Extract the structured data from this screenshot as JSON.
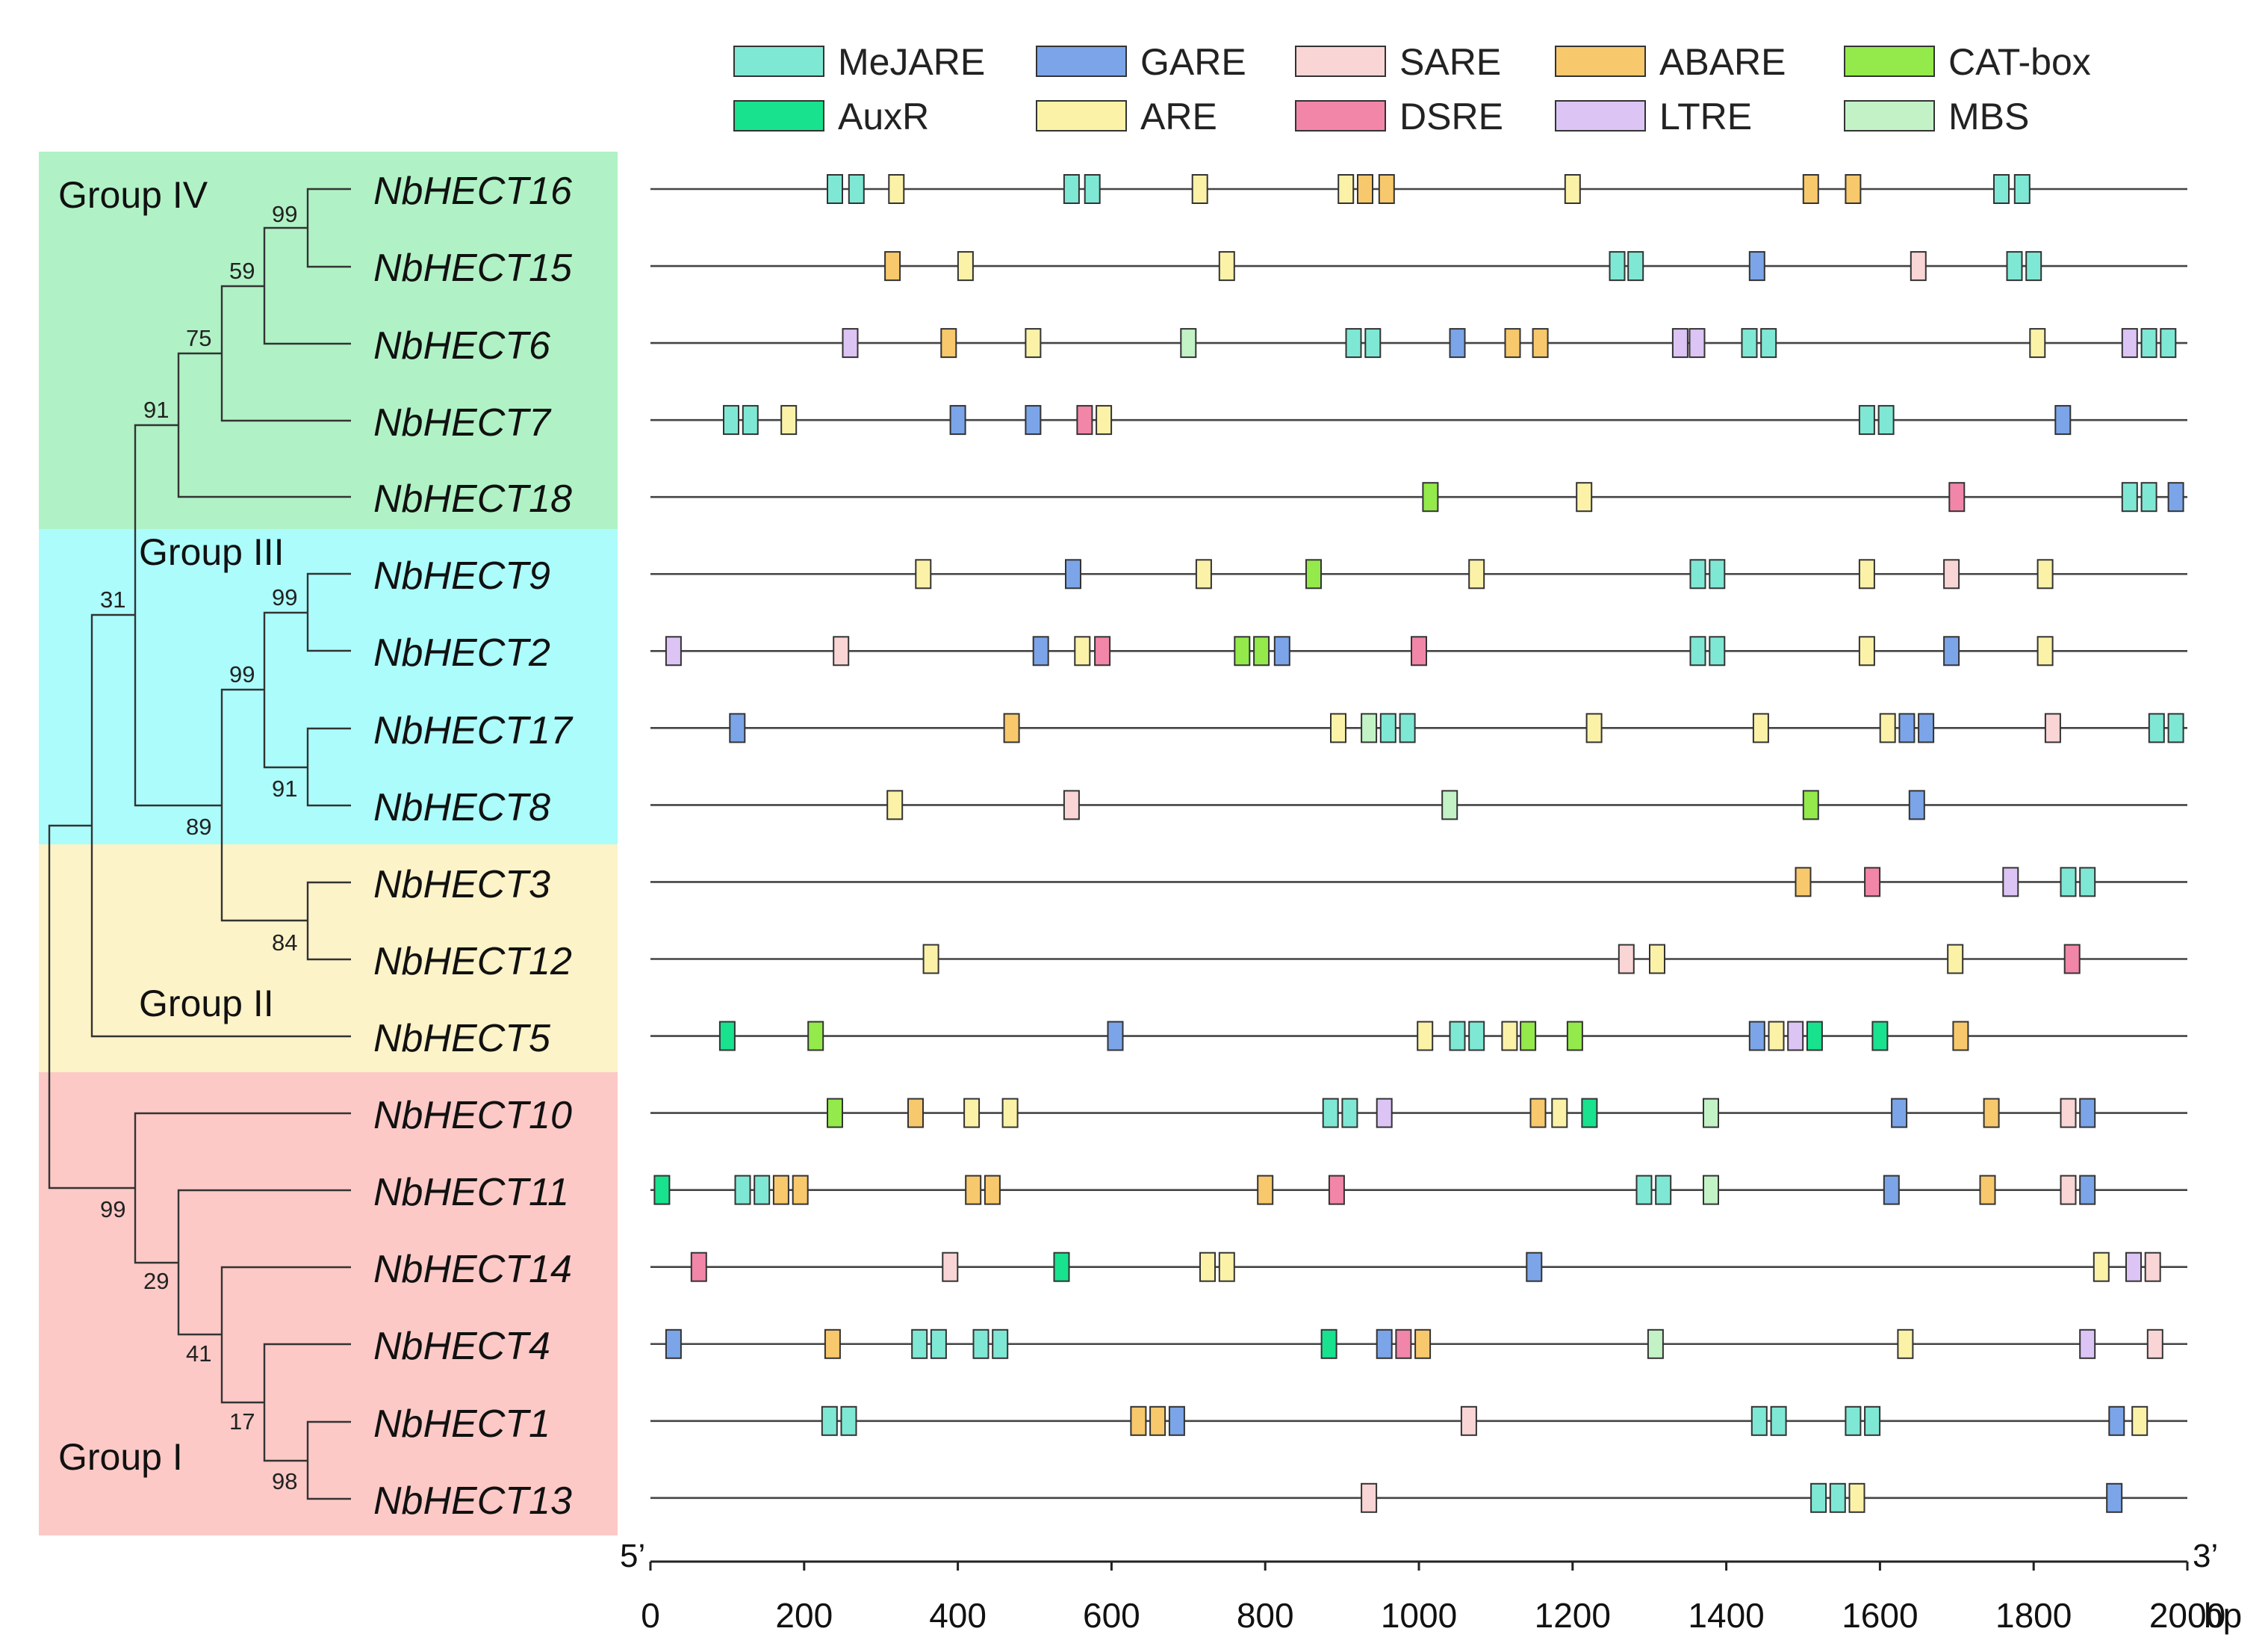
{
  "legend": [
    {
      "key": "MeJARE",
      "label": "MeJARE",
      "color": "#7fe8d4"
    },
    {
      "key": "GARE",
      "label": "GARE",
      "color": "#7ba5e8"
    },
    {
      "key": "SARE",
      "label": "SARE",
      "color": "#fad5d5"
    },
    {
      "key": "ABARE",
      "label": "ABARE",
      "color": "#f8c86c"
    },
    {
      "key": "CATbox",
      "label": "CAT-box",
      "color": "#93ea4a"
    },
    {
      "key": "AuxR",
      "label": "AuxR",
      "color": "#18e28e"
    },
    {
      "key": "ARE",
      "label": "ARE",
      "color": "#fbf2a8"
    },
    {
      "key": "DSRE",
      "label": "DSRE",
      "color": "#f286a8"
    },
    {
      "key": "LTRE",
      "label": "LTRE",
      "color": "#dcc4f5"
    },
    {
      "key": "MBS",
      "label": "MBS",
      "color": "#c2f2c6"
    }
  ],
  "groups": [
    {
      "label": "Group IV",
      "color": "#b0f2c5"
    },
    {
      "label": "Group III",
      "color": "#acfcfc"
    },
    {
      "label": "Group II",
      "color": "#fdf3c8"
    },
    {
      "label": "Group I",
      "color": "#fcc9c6"
    }
  ],
  "bootstraps": [
    "99",
    "59",
    "75",
    "91",
    "31",
    "99",
    "99",
    "91",
    "89",
    "84",
    "99",
    "29",
    "41",
    "17",
    "98"
  ],
  "axis": {
    "ticks": [
      0,
      200,
      400,
      600,
      800,
      1000,
      1200,
      1400,
      1600,
      1800,
      2000
    ],
    "tick_labels": [
      "0",
      "200",
      "400",
      "600",
      "800",
      "1000",
      "1200",
      "1400",
      "1600",
      "1800",
      "2000"
    ],
    "unit": "bp",
    "start_label": "5’",
    "end_label": "3’",
    "max": 2000
  },
  "genes": [
    {
      "name": "NbHECT16",
      "elements": [
        [
          "MeJARE",
          240
        ],
        [
          "MeJARE",
          268
        ],
        [
          "ARE",
          320
        ],
        [
          "MeJARE",
          548
        ],
        [
          "MeJARE",
          575
        ],
        [
          "ARE",
          715
        ],
        [
          "ARE",
          905
        ],
        [
          "ABARE",
          930
        ],
        [
          "ABARE",
          958
        ],
        [
          "ARE",
          1200
        ],
        [
          "ABARE",
          1510
        ],
        [
          "ABARE",
          1565
        ],
        [
          "MeJARE",
          1758
        ],
        [
          "MeJARE",
          1785
        ]
      ]
    },
    {
      "name": "NbHECT15",
      "elements": [
        [
          "ABARE",
          315
        ],
        [
          "ARE",
          410
        ],
        [
          "ARE",
          750
        ],
        [
          "MeJARE",
          1258
        ],
        [
          "MeJARE",
          1282
        ],
        [
          "GARE",
          1440
        ],
        [
          "SARE",
          1650
        ],
        [
          "MeJARE",
          1775
        ],
        [
          "MeJARE",
          1800
        ]
      ]
    },
    {
      "name": "NbHECT6",
      "elements": [
        [
          "LTRE",
          260
        ],
        [
          "ABARE",
          388
        ],
        [
          "ARE",
          498
        ],
        [
          "MBS",
          700
        ],
        [
          "MeJARE",
          915
        ],
        [
          "MeJARE",
          940
        ],
        [
          "GARE",
          1050
        ],
        [
          "ABARE",
          1122
        ],
        [
          "ABARE",
          1158
        ],
        [
          "LTRE",
          1340
        ],
        [
          "LTRE",
          1362
        ],
        [
          "MeJARE",
          1430
        ],
        [
          "MeJARE",
          1455
        ],
        [
          "ARE",
          1805
        ],
        [
          "LTRE",
          1925
        ],
        [
          "MeJARE",
          1950
        ],
        [
          "MeJARE",
          1975
        ]
      ]
    },
    {
      "name": "NbHECT7",
      "elements": [
        [
          "MeJARE",
          105
        ],
        [
          "MeJARE",
          130
        ],
        [
          "ARE",
          180
        ],
        [
          "GARE",
          400
        ],
        [
          "GARE",
          498
        ],
        [
          "DSRE",
          565
        ],
        [
          "ARE",
          590
        ],
        [
          "MeJARE",
          1583
        ],
        [
          "MeJARE",
          1608
        ],
        [
          "GARE",
          1838
        ]
      ]
    },
    {
      "name": "NbHECT18",
      "elements": [
        [
          "CATbox",
          1015
        ],
        [
          "ARE",
          1215
        ],
        [
          "DSRE",
          1700
        ],
        [
          "MeJARE",
          1925
        ],
        [
          "MeJARE",
          1950
        ],
        [
          "GARE",
          1985
        ]
      ]
    },
    {
      "name": "NbHECT9",
      "elements": [
        [
          "ARE",
          355
        ],
        [
          "GARE",
          550
        ],
        [
          "ARE",
          720
        ],
        [
          "CATbox",
          863
        ],
        [
          "ARE",
          1075
        ],
        [
          "MeJARE",
          1363
        ],
        [
          "MeJARE",
          1388
        ],
        [
          "ARE",
          1583
        ],
        [
          "SARE",
          1693
        ],
        [
          "ARE",
          1815
        ]
      ]
    },
    {
      "name": "NbHECT2",
      "elements": [
        [
          "LTRE",
          30
        ],
        [
          "SARE",
          248
        ],
        [
          "GARE",
          508
        ],
        [
          "ARE",
          562
        ],
        [
          "DSRE",
          588
        ],
        [
          "CATbox",
          770
        ],
        [
          "CATbox",
          795
        ],
        [
          "GARE",
          822
        ],
        [
          "DSRE",
          1000
        ],
        [
          "MeJARE",
          1363
        ],
        [
          "MeJARE",
          1388
        ],
        [
          "ARE",
          1583
        ],
        [
          "GARE",
          1693
        ],
        [
          "ARE",
          1815
        ]
      ]
    },
    {
      "name": "NbHECT17",
      "elements": [
        [
          "GARE",
          113
        ],
        [
          "ABARE",
          470
        ],
        [
          "ARE",
          895
        ],
        [
          "MBS",
          935
        ],
        [
          "MeJARE",
          960
        ],
        [
          "MeJARE",
          985
        ],
        [
          "ARE",
          1228
        ],
        [
          "ARE",
          1445
        ],
        [
          "ARE",
          1610
        ],
        [
          "GARE",
          1635
        ],
        [
          "GARE",
          1660
        ],
        [
          "SARE",
          1825
        ],
        [
          "MeJARE",
          1960
        ],
        [
          "MeJARE",
          1985
        ]
      ]
    },
    {
      "name": "NbHECT8",
      "elements": [
        [
          "ARE",
          318
        ],
        [
          "SARE",
          548
        ],
        [
          "MBS",
          1040
        ],
        [
          "CATbox",
          1510
        ],
        [
          "GARE",
          1648
        ]
      ]
    },
    {
      "name": "NbHECT3",
      "elements": [
        [
          "ABARE",
          1500
        ],
        [
          "DSRE",
          1590
        ],
        [
          "LTRE",
          1770
        ],
        [
          "MeJARE",
          1845
        ],
        [
          "MeJARE",
          1870
        ]
      ]
    },
    {
      "name": "NbHECT12",
      "elements": [
        [
          "ARE",
          365
        ],
        [
          "SARE",
          1270
        ],
        [
          "ARE",
          1310
        ],
        [
          "ARE",
          1698
        ],
        [
          "DSRE",
          1850
        ]
      ]
    },
    {
      "name": "NbHECT5",
      "elements": [
        [
          "AuxR",
          100
        ],
        [
          "CATbox",
          215
        ],
        [
          "GARE",
          605
        ],
        [
          "ARE",
          1008
        ],
        [
          "MeJARE",
          1050
        ],
        [
          "MeJARE",
          1075
        ],
        [
          "ARE",
          1118
        ],
        [
          "CATbox",
          1142
        ],
        [
          "CATbox",
          1203
        ],
        [
          "GARE",
          1440
        ],
        [
          "ARE",
          1465
        ],
        [
          "LTRE",
          1490
        ],
        [
          "AuxR",
          1515
        ],
        [
          "AuxR",
          1600
        ],
        [
          "ABARE",
          1705
        ]
      ]
    },
    {
      "name": "NbHECT10",
      "elements": [
        [
          "CATbox",
          240
        ],
        [
          "ABARE",
          345
        ],
        [
          "ARE",
          418
        ],
        [
          "ARE",
          468
        ],
        [
          "MeJARE",
          885
        ],
        [
          "MeJARE",
          910
        ],
        [
          "LTRE",
          955
        ],
        [
          "ABARE",
          1155
        ],
        [
          "ARE",
          1183
        ],
        [
          "AuxR",
          1222
        ],
        [
          "MBS",
          1380
        ],
        [
          "GARE",
          1625
        ],
        [
          "ABARE",
          1745
        ],
        [
          "SARE",
          1845
        ],
        [
          "GARE",
          1870
        ]
      ]
    },
    {
      "name": "NbHECT11",
      "elements": [
        [
          "AuxR",
          15
        ],
        [
          "MeJARE",
          120
        ],
        [
          "MeJARE",
          145
        ],
        [
          "ABARE",
          170
        ],
        [
          "ABARE",
          195
        ],
        [
          "ABARE",
          420
        ],
        [
          "ABARE",
          445
        ],
        [
          "ABARE",
          800
        ],
        [
          "DSRE",
          893
        ],
        [
          "MeJARE",
          1293
        ],
        [
          "MeJARE",
          1318
        ],
        [
          "MBS",
          1380
        ],
        [
          "GARE",
          1615
        ],
        [
          "ABARE",
          1740
        ],
        [
          "SARE",
          1845
        ],
        [
          "GARE",
          1870
        ]
      ]
    },
    {
      "name": "NbHECT14",
      "elements": [
        [
          "DSRE",
          63
        ],
        [
          "SARE",
          390
        ],
        [
          "AuxR",
          535
        ],
        [
          "ARE",
          725
        ],
        [
          "ARE",
          750
        ],
        [
          "GARE",
          1150
        ],
        [
          "ARE",
          1888
        ],
        [
          "LTRE",
          1930
        ],
        [
          "SARE",
          1955
        ]
      ]
    },
    {
      "name": "NbHECT4",
      "elements": [
        [
          "GARE",
          30
        ],
        [
          "ABARE",
          237
        ],
        [
          "MeJARE",
          350
        ],
        [
          "MeJARE",
          375
        ],
        [
          "MeJARE",
          430
        ],
        [
          "MeJARE",
          455
        ],
        [
          "AuxR",
          883
        ],
        [
          "GARE",
          955
        ],
        [
          "DSRE",
          980
        ],
        [
          "ABARE",
          1005
        ],
        [
          "MBS",
          1308
        ],
        [
          "ARE",
          1633
        ],
        [
          "LTRE",
          1870
        ],
        [
          "SARE",
          1958
        ]
      ]
    },
    {
      "name": "NbHECT1",
      "elements": [
        [
          "MeJARE",
          233
        ],
        [
          "MeJARE",
          258
        ],
        [
          "ABARE",
          635
        ],
        [
          "ABARE",
          660
        ],
        [
          "GARE",
          685
        ],
        [
          "SARE",
          1065
        ],
        [
          "MeJARE",
          1443
        ],
        [
          "MeJARE",
          1468
        ],
        [
          "MeJARE",
          1565
        ],
        [
          "MeJARE",
          1590
        ],
        [
          "GARE",
          1908
        ],
        [
          "ARE",
          1938
        ]
      ]
    },
    {
      "name": "NbHECT13",
      "elements": [
        [
          "SARE",
          935
        ],
        [
          "MeJARE",
          1520
        ],
        [
          "MeJARE",
          1545
        ],
        [
          "ARE",
          1570
        ],
        [
          "GARE",
          1905
        ]
      ]
    }
  ]
}
